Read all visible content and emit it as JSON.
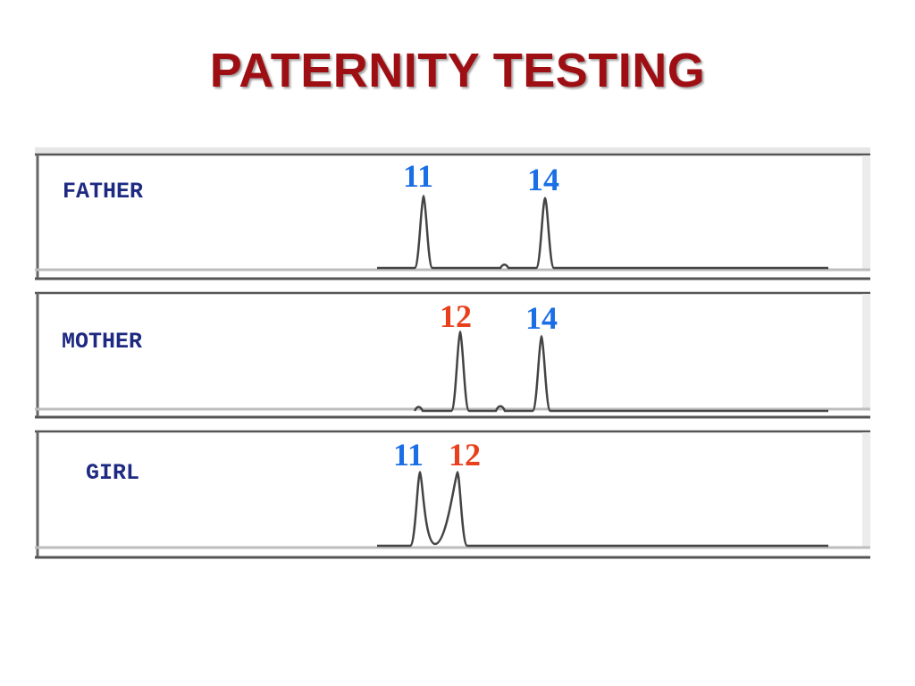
{
  "title": "PATERNITY TESTING",
  "colors": {
    "title": "#9e0f14",
    "person_label": "#1e2a82",
    "shared_with_father": "#1a6ee6",
    "from_mother": "#e8401c",
    "trace": "#444444"
  },
  "panels": [
    {
      "person": "FATHER",
      "alleles": [
        {
          "label": "11",
          "color": "#1a6ee6"
        },
        {
          "label": "14",
          "color": "#1a6ee6"
        }
      ]
    },
    {
      "person": "MOTHER",
      "alleles": [
        {
          "label": "12",
          "color": "#e8401c"
        },
        {
          "label": "14",
          "color": "#1a6ee6"
        }
      ]
    },
    {
      "person": "GIRL",
      "alleles": [
        {
          "label": "11",
          "color": "#1a6ee6"
        },
        {
          "label": "12",
          "color": "#e8401c"
        }
      ]
    }
  ]
}
